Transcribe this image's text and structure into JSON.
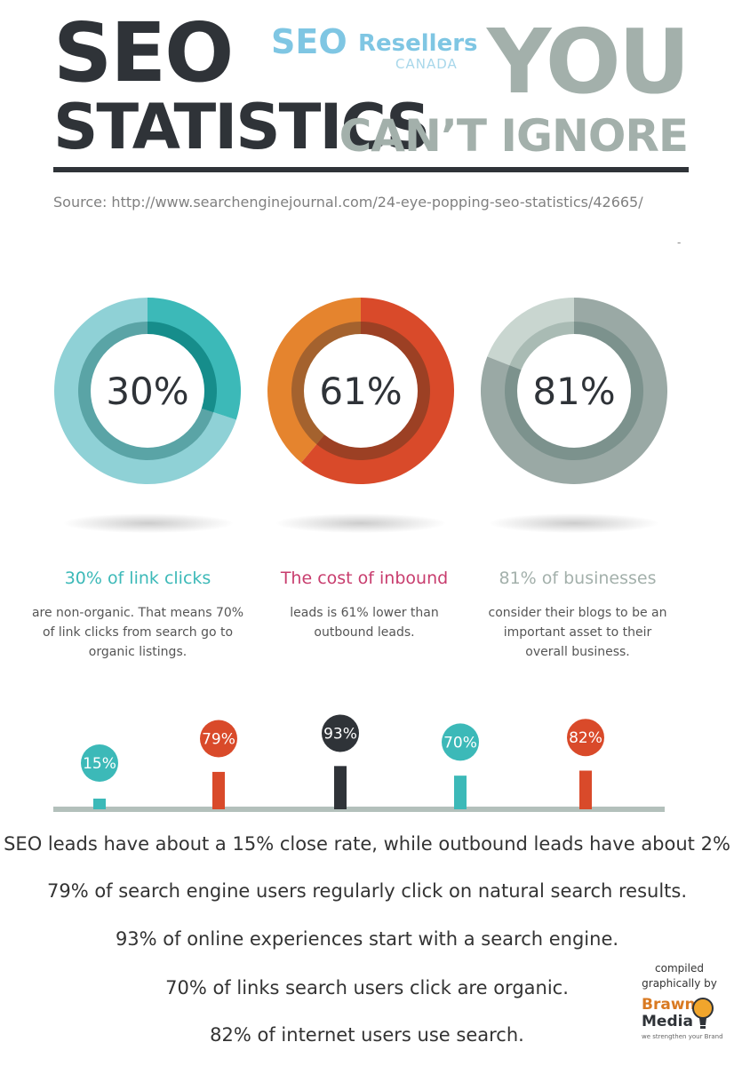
{
  "header": {
    "title_line1": "SEO",
    "title_line2": "STATISTICS",
    "tagline_line1": "YOU",
    "tagline_line2": "CAN’T IGNORE",
    "source": "Source: http://www.searchenginejournal.com/24-eye-popping-seo-statistics/42665/"
  },
  "logo": {
    "word1": "SEO",
    "word2": "Resellers",
    "word3": "CANADA"
  },
  "stray_mark": "-",
  "colors": {
    "teal": "#3cb9b8",
    "teal_light": "#8fd1d6",
    "teal_inner": "#168d8b",
    "teal_inner_light": "#5aa4a6",
    "orange_red": "#d94a2a",
    "orange": "#e5842e",
    "orange_inner_dark": "#9c4024",
    "orange_inner": "#a4622e",
    "grey": "#9aa9a5",
    "grey_light": "#c9d6d0",
    "grey_inner": "#7c928d",
    "grey_inner_light": "#a9bbb4",
    "dark": "#2f3338",
    "pink": "#c83d6e",
    "grey_text": "#a3b0ab",
    "axis": "#b3c0bb"
  },
  "chart_data": [
    {
      "type": "pie",
      "name": "donuts",
      "values": [
        30,
        61,
        81
      ],
      "labels": [
        "30%",
        "61%",
        "81%"
      ],
      "headings": [
        "30% of link clicks",
        "The cost of inbound",
        "81% of businesses"
      ],
      "descriptions": [
        [
          "are non-organic. That means 70%",
          "of link clicks from search  go to",
          "organic listings."
        ],
        [
          "leads is 61% lower than",
          "outbound leads."
        ],
        [
          "consider their blogs to be an",
          "important asset to their",
          "overall business."
        ]
      ]
    },
    {
      "type": "bar",
      "name": "lollipop",
      "values": [
        15,
        79,
        93,
        70,
        82
      ],
      "labels": [
        "15%",
        "79%",
        "93%",
        "70%",
        "82%"
      ]
    }
  ],
  "statements": [
    "SEO leads have about a 15% close rate, while outbound leads have about 2%",
    "79% of search engine users regularly click on natural search results.",
    "93% of online experiences start with a search engine.",
    "70% of links search users click are organic.",
    "82% of internet users use search."
  ],
  "credit": {
    "line1": "compiled",
    "line2": "graphically by",
    "brand1": "Brawn",
    "brand2": "Media",
    "tagline": "we strengthen your Brand"
  }
}
